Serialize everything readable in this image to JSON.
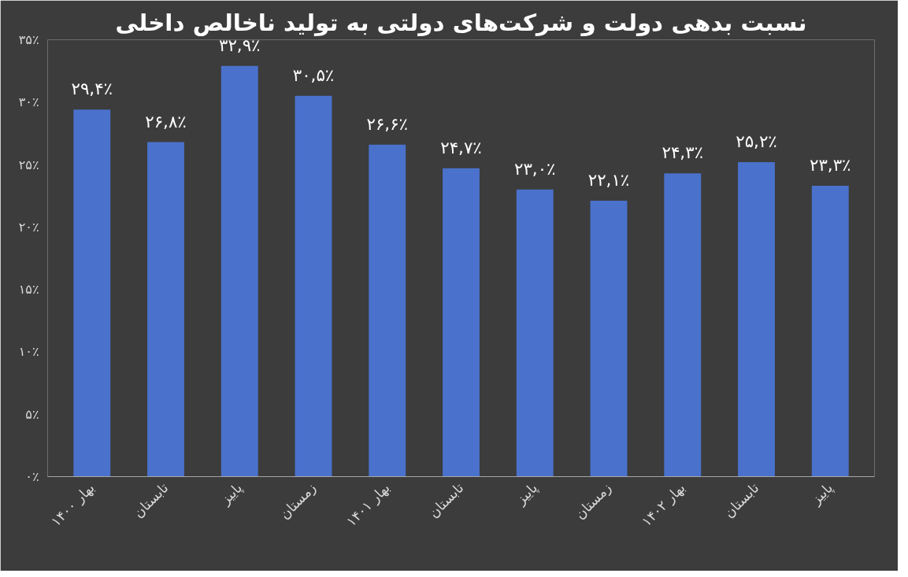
{
  "chart_data": {
    "type": "bar",
    "title": "نسبت بدهی دولت و شرکت‌های دولتی به تولید ناخالص داخلی",
    "categories": [
      "بهار ۱۴۰۰",
      "تابستان",
      "پاییز",
      "زمستان",
      "بهار ۱۴۰۱",
      "تابستان",
      "پاییز",
      "زمستان",
      "بهار ۱۴۰۲",
      "تابستان",
      "پاییز"
    ],
    "values": [
      29.4,
      26.8,
      32.9,
      30.5,
      26.6,
      24.7,
      23.0,
      22.1,
      24.3,
      25.2,
      23.3
    ],
    "value_labels": [
      "۲۹,۴٪",
      "۲۶,۸٪",
      "۳۲,۹٪",
      "۳۰,۵٪",
      "۲۶,۶٪",
      "۲۴,۷٪",
      "۲۳,۰٪",
      "۲۲,۱٪",
      "۲۴,۳٪",
      "۲۵,۲٪",
      "۲۳,۳٪"
    ],
    "color": "#4a72cc",
    "ylim": [
      0,
      35
    ],
    "yticks": [
      {
        "value": 0,
        "label": "۰٪"
      },
      {
        "value": 5,
        "label": "۵٪"
      },
      {
        "value": 10,
        "label": "۱۰٪"
      },
      {
        "value": 15,
        "label": "۱۵٪"
      },
      {
        "value": 20,
        "label": "۲۰٪"
      },
      {
        "value": 25,
        "label": "۲۵٪"
      },
      {
        "value": 30,
        "label": "۳۰٪"
      },
      {
        "value": 35,
        "label": "۳۵٪"
      }
    ],
    "grid": false
  }
}
